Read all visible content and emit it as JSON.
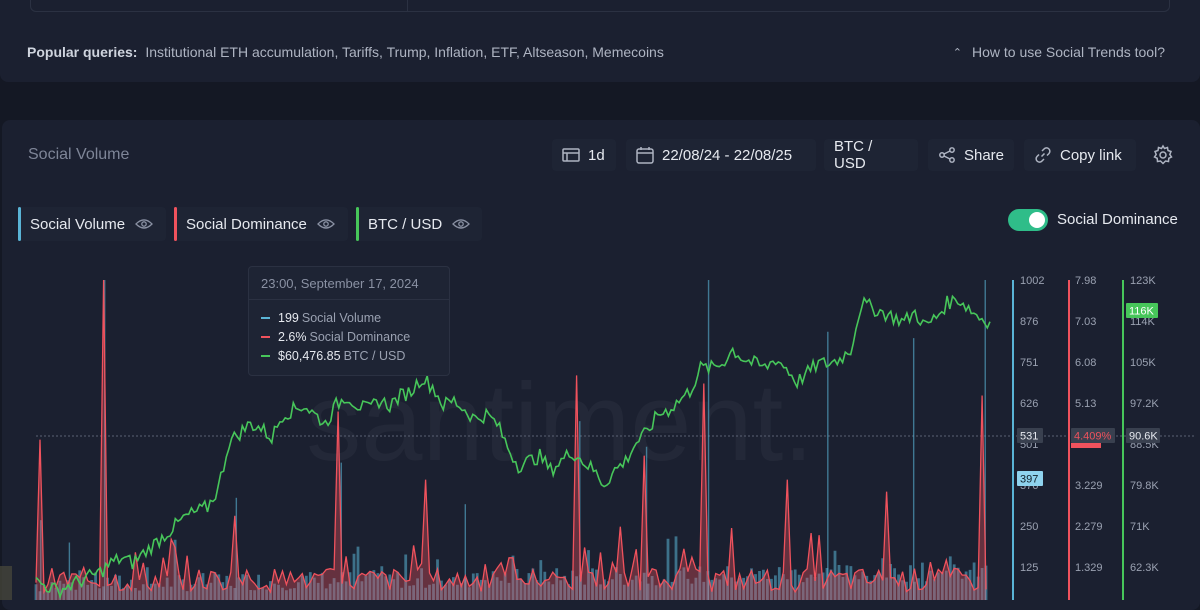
{
  "popular": {
    "label": "Popular queries:",
    "queries": "Institutional ETH accumulation, Tariffs, Trump, Inflation, ETF, Altseason, Memecoins",
    "help_link": "How to use Social Trends tool?"
  },
  "toolbar": {
    "title": "Social Volume",
    "interval": "1d",
    "date_range": "22/08/24 - 22/08/25",
    "pair": "BTC / USD",
    "share": "Share",
    "copy_link": "Copy link"
  },
  "legend": {
    "social_volume": "Social Volume",
    "social_dominance": "Social Dominance",
    "btc_usd": "BTC / USD"
  },
  "toggle": {
    "label": "Social Dominance",
    "on": true
  },
  "tooltip": {
    "date": "23:00, September 17, 2024",
    "rows": [
      {
        "value": "199",
        "label": "Social Volume",
        "color": "#5ab4d6"
      },
      {
        "value": "2.6%",
        "label": "Social Dominance",
        "color": "#f0525d"
      },
      {
        "value": "$60,476.85",
        "label": "BTC / USD",
        "color": "#47c65a"
      }
    ]
  },
  "watermark": "santiment.",
  "chart_data": {
    "type": "line",
    "series_names": [
      "Social Volume",
      "Social Dominance",
      "BTC / USD"
    ],
    "colors": {
      "social_volume": "#5ab4d6",
      "social_dominance": "#f0525d",
      "btc": "#47c65a"
    },
    "social_volume_axis": {
      "ticks": [
        "1002",
        "876",
        "751",
        "626",
        "501",
        "376",
        "250",
        "125"
      ],
      "crosshair_label": "531",
      "marker_label": "397"
    },
    "social_dominance_axis": {
      "ticks": [
        "7.98",
        "7.03",
        "6.08",
        "5.13",
        "4.18",
        "3.229",
        "2.279",
        "1.329"
      ],
      "crosshair_label": "4.409%"
    },
    "btc_axis": {
      "ticks": [
        "123K",
        "114K",
        "105K",
        "97.2K",
        "88.5K",
        "79.8K",
        "71K",
        "62.3K"
      ],
      "crosshair_label": "90.6K",
      "last_label": "116K"
    },
    "btc_price_k": [
      58,
      57,
      56,
      57,
      58,
      59,
      60,
      62,
      63,
      62,
      64,
      66,
      68,
      70,
      72,
      73,
      74,
      78,
      88,
      90,
      92,
      91,
      89,
      94,
      95,
      96,
      94,
      92,
      96,
      98,
      96,
      95,
      97,
      96,
      98,
      99,
      102,
      100,
      96,
      97,
      95,
      93,
      94,
      92,
      87,
      83,
      84,
      85,
      82,
      84,
      86,
      84,
      82,
      79,
      82,
      84,
      88,
      90,
      94,
      95,
      97,
      99,
      104,
      104,
      105,
      108,
      106,
      105,
      104,
      106,
      104,
      101,
      103,
      105,
      105,
      106,
      108,
      118,
      117,
      116,
      115,
      114,
      116,
      113,
      115,
      118,
      119,
      117,
      115,
      114
    ],
    "social_volume_spikes": [
      {
        "x": 0.005,
        "v": 250
      },
      {
        "x": 0.035,
        "v": 180
      },
      {
        "x": 0.072,
        "v": 1002
      },
      {
        "x": 0.21,
        "v": 320
      },
      {
        "x": 0.32,
        "v": 430
      },
      {
        "x": 0.45,
        "v": 300
      },
      {
        "x": 0.57,
        "v": 560
      },
      {
        "x": 0.64,
        "v": 480
      },
      {
        "x": 0.705,
        "v": 1002
      },
      {
        "x": 0.83,
        "v": 840
      },
      {
        "x": 0.92,
        "v": 820
      },
      {
        "x": 0.995,
        "v": 1002
      }
    ],
    "social_dominance_spikes": [
      {
        "x": 0.005,
        "v": 4.0
      },
      {
        "x": 0.072,
        "v": 7.98
      },
      {
        "x": 0.21,
        "v": 2.1
      },
      {
        "x": 0.32,
        "v": 4.7
      },
      {
        "x": 0.41,
        "v": 3.0
      },
      {
        "x": 0.57,
        "v": 5.6
      },
      {
        "x": 0.64,
        "v": 3.6
      },
      {
        "x": 0.705,
        "v": 5.4
      },
      {
        "x": 0.79,
        "v": 3.0
      },
      {
        "x": 0.895,
        "v": 2.7
      },
      {
        "x": 0.995,
        "v": 5.1
      }
    ]
  }
}
